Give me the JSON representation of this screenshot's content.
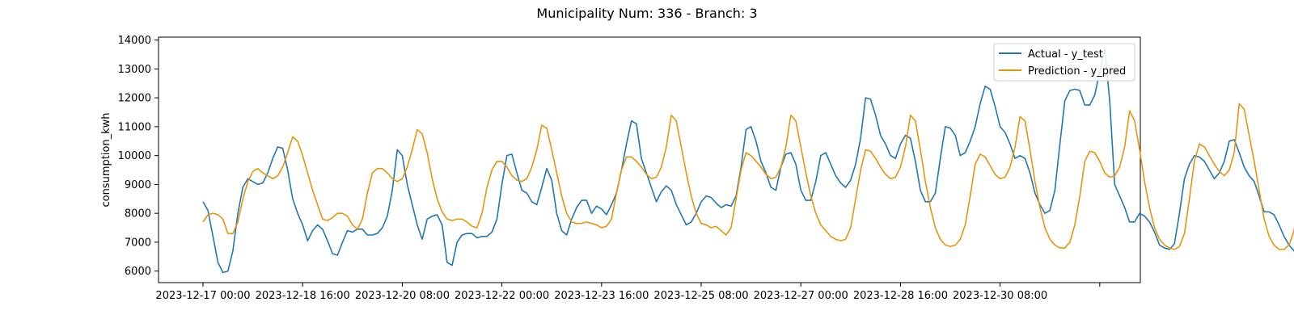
{
  "chart_data": {
    "type": "line",
    "title": "Municipality Num: 336 - Branch: 3",
    "xlabel": "",
    "ylabel": "consumption_kwh",
    "ylim": [
      5600,
      14100
    ],
    "yticks": [
      6000,
      7000,
      8000,
      9000,
      10000,
      11000,
      12000,
      13000,
      14000
    ],
    "xticks": [
      "2023-12-17 00:00",
      "2023-12-18 16:00",
      "2023-12-20 08:00",
      "2023-12-22 00:00",
      "2023-12-23 16:00",
      "2023-12-25 08:00",
      "2023-12-27 00:00",
      "2023-12-28 16:00",
      "2023-12-30 08:00",
      ""
    ],
    "x_start": "2023-12-17 00:00",
    "x_step_hours": 2,
    "legend_position": "top-right",
    "grid": false,
    "series": [
      {
        "name": "Actual - y_test",
        "color": "#1f77b4",
        "values": [
          8400,
          8100,
          7200,
          6300,
          5950,
          6000,
          6700,
          8000,
          8900,
          9200,
          9100,
          9000,
          9050,
          9400,
          9900,
          10300,
          10250,
          9500,
          8500,
          8000,
          7600,
          7050,
          7400,
          7600,
          7450,
          7050,
          6600,
          6550,
          7000,
          7400,
          7350,
          7450,
          7450,
          7250,
          7250,
          7300,
          7500,
          7900,
          8800,
          10200,
          10000,
          9000,
          8300,
          7600,
          7100,
          7800,
          7900,
          7950,
          7600,
          6300,
          6200,
          7000,
          7250,
          7300,
          7300,
          7150,
          7200,
          7200,
          7350,
          7800,
          9000,
          10000,
          10050,
          9400,
          8800,
          8700,
          8400,
          8300,
          8900,
          9550,
          9150,
          8000,
          7400,
          7250,
          7800,
          8200,
          8450,
          8450,
          8000,
          8250,
          8150,
          7950,
          8300,
          8700,
          9500,
          10400,
          11200,
          11100,
          9900,
          9400,
          8900,
          8400,
          8750,
          8950,
          8800,
          8300,
          7950,
          7600,
          7700,
          8000,
          8400,
          8600,
          8550,
          8350,
          8200,
          8300,
          8250,
          8600,
          9600,
          10900,
          11000,
          10500,
          9800,
          9400,
          8900,
          8800,
          9600,
          10050,
          10100,
          9700,
          8800,
          8450,
          8450,
          9100,
          10000,
          10100,
          9700,
          9300,
          9050,
          8900,
          9150,
          9700,
          10600,
          12000,
          11950,
          11400,
          10700,
          10400,
          10000,
          9900,
          10400,
          10700,
          10600,
          9800,
          8800,
          8400,
          8400,
          8700,
          9900,
          11000,
          10950,
          10700,
          10000,
          10100,
          10500,
          11000,
          11800,
          12400,
          12300,
          11700,
          11000,
          10800,
          10400,
          9900,
          10000,
          9900,
          9400,
          8700,
          8300,
          8000,
          8100,
          8800,
          10400,
          11900,
          12250,
          12300,
          12250,
          11750,
          11750,
          12100,
          12900,
          13700,
          11900,
          9000,
          8600,
          8200,
          7700,
          7700,
          8000,
          7900,
          7700,
          7350,
          6900,
          6800,
          6750,
          6950,
          8000,
          9200,
          9700,
          10000,
          9950,
          9800,
          9500,
          9200,
          9400,
          9800,
          10500,
          10550,
          10100,
          9600,
          9300,
          9100,
          8600,
          8050,
          8050,
          7950,
          7600,
          7200,
          6900,
          6700,
          6450,
          7000,
          8100,
          9500,
          10200,
          10650,
          10450,
          9900,
          9400,
          9100,
          9300,
          9700,
          10050,
          10050,
          9800,
          9600,
          9350,
          9000,
          8600,
          8750,
          9050,
          8850,
          8500,
          8000,
          7800,
          7900,
          8200,
          9000,
          9700,
          10050,
          9900,
          9500,
          9000,
          8700,
          8600,
          9000,
          9700,
          10400,
          11300,
          11250,
          10900,
          9800,
          9200,
          8800,
          9400,
          8800,
          8700,
          8300,
          7900,
          7600,
          7100,
          6900,
          6850,
          7300,
          8200,
          8700,
          8700,
          8750,
          8700,
          8450,
          8400,
          8450,
          8650,
          9350,
          10200,
          10100,
          9400,
          8600,
          8250,
          7800,
          7600,
          7850,
          8150,
          8250,
          7900,
          7450,
          7100,
          6900,
          6600,
          7300,
          8200,
          8650,
          8600,
          8400,
          7900,
          7750,
          7850,
          8200,
          8700,
          9350,
          10150,
          10250,
          9800,
          9200,
          8800,
          8650,
          8400,
          8000,
          8300,
          8400,
          8450,
          8500,
          7900,
          7300,
          6800,
          6850,
          7300,
          8500,
          9200,
          9100,
          8800,
          8300,
          8200,
          8300,
          8700,
          9500,
          10850,
          10700,
          10300,
          9500,
          9100,
          8800,
          8200,
          8600,
          8650,
          8300,
          7800,
          7400,
          7100,
          6900,
          6750,
          7200,
          8300,
          9200,
          9500,
          9700,
          9850,
          9900,
          10100,
          10400,
          10800,
          11350,
          11800,
          12100,
          11950,
          11000,
          9500,
          9100,
          8500,
          7950
        ]
      },
      {
        "name": "Prediction - y_pred",
        "color": "#e8950e",
        "values": [
          7700,
          7950,
          8000,
          7950,
          7800,
          7300,
          7300,
          7700,
          8500,
          9100,
          9450,
          9550,
          9400,
          9300,
          9200,
          9300,
          9600,
          10100,
          10650,
          10500,
          10000,
          9400,
          8800,
          8300,
          7800,
          7750,
          7850,
          8000,
          8000,
          7900,
          7600,
          7450,
          7800,
          8700,
          9400,
          9550,
          9550,
          9400,
          9200,
          9100,
          9200,
          9600,
          10200,
          10900,
          10750,
          10100,
          9200,
          8500,
          8050,
          7800,
          7750,
          7800,
          7800,
          7700,
          7550,
          7500,
          8000,
          8900,
          9500,
          9800,
          9800,
          9600,
          9300,
          9150,
          9100,
          9200,
          9600,
          10200,
          11050,
          10950,
          10200,
          9400,
          8600,
          8000,
          7700,
          7650,
          7650,
          7700,
          7650,
          7600,
          7500,
          7550,
          7800,
          8700,
          9500,
          9950,
          9950,
          9800,
          9600,
          9350,
          9200,
          9250,
          9600,
          10300,
          11400,
          11200,
          10300,
          9400,
          8600,
          8000,
          7650,
          7600,
          7500,
          7550,
          7400,
          7250,
          7500,
          8500,
          9500,
          10100,
          10000,
          9800,
          9600,
          9350,
          9200,
          9250,
          9600,
          10300,
          11400,
          11200,
          10300,
          9400,
          8600,
          8000,
          7600,
          7400,
          7200,
          7100,
          7050,
          7100,
          7500,
          8500,
          9500,
          10200,
          10150,
          9900,
          9600,
          9350,
          9200,
          9250,
          9600,
          10300,
          11400,
          11200,
          10200,
          9100,
          8200,
          7500,
          7100,
          6900,
          6850,
          6900,
          7100,
          7600,
          8600,
          9700,
          10050,
          9950,
          9650,
          9350,
          9200,
          9250,
          9600,
          10300,
          11350,
          11200,
          10200,
          9100,
          8200,
          7500,
          7100,
          6900,
          6800,
          6800,
          7000,
          7600,
          8600,
          9800,
          10150,
          10100,
          9800,
          9400,
          9250,
          9300,
          9600,
          10300,
          11550,
          11200,
          10200,
          9100,
          8200,
          7500,
          7100,
          6900,
          6800,
          6750,
          6850,
          7300,
          8500,
          9800,
          10400,
          10300,
          10000,
          9700,
          9450,
          9300,
          9500,
          10100,
          11800,
          11600,
          10700,
          9800,
          8800,
          7800,
          7200,
          6900,
          6750,
          6750,
          6900,
          7400,
          8500,
          9800,
          10450,
          10400,
          10100,
          9800,
          9650,
          9700,
          10000,
          10700,
          11900,
          11700,
          10900,
          10000,
          9200,
          8400,
          7700,
          7200,
          6950,
          6800,
          6750,
          7000,
          7700,
          8700,
          9800,
          10550,
          10550,
          10300,
          10000,
          9800,
          9900,
          10300,
          11100,
          12000,
          11800,
          11000,
          10000,
          9100,
          8300,
          7600,
          7100,
          6850,
          6750,
          6750,
          7000,
          7700,
          8800,
          9900,
          10600,
          10650,
          10450,
          10200,
          10000,
          9900,
          10100,
          10700,
          11800,
          12050,
          11800,
          11000,
          10000,
          9100,
          8300,
          7600,
          7100,
          6850,
          6750,
          6750,
          7000,
          7600,
          8800,
          9900,
          10600,
          10600,
          10350,
          10100,
          9900,
          9850,
          10000,
          10700,
          11700,
          11950,
          11500,
          10700,
          9800,
          8900,
          8100,
          7400,
          6950,
          6750,
          6650,
          6700,
          7000,
          7700,
          8800,
          10000,
          10300,
          10400,
          10200,
          9950,
          9900,
          10100,
          10700,
          11700,
          12050,
          11800,
          11000,
          10000,
          9100,
          8300,
          7500,
          7000,
          6700,
          6650,
          6700,
          6900,
          7500,
          8500,
          9700,
          10400,
          10500,
          10400,
          10200,
          10100,
          10200,
          10700,
          11600,
          12150,
          12050,
          11500,
          10500,
          9500,
          8500,
          7700
        ]
      }
    ]
  }
}
